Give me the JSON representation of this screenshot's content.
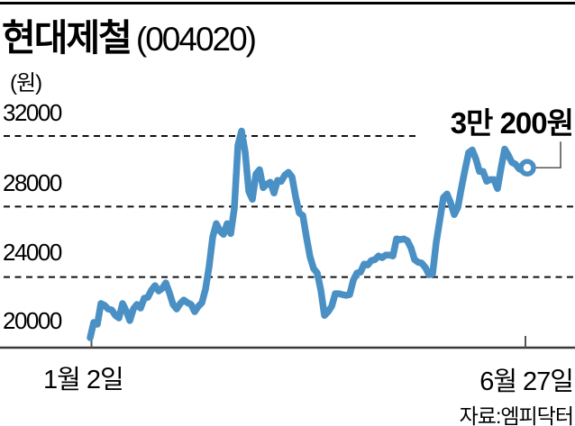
{
  "header": {
    "title": "현대제철",
    "ticker": "(004020)"
  },
  "axes": {
    "y_unit_label": "(원)",
    "y_ticks": [
      {
        "value": 32000,
        "label": "32000",
        "gridline": "dashed-short"
      },
      {
        "value": 28000,
        "label": "28000",
        "gridline": "dashed"
      },
      {
        "value": 24000,
        "label": "24000",
        "gridline": "dashed"
      },
      {
        "value": 20000,
        "label": "20000",
        "gridline": "solid-axis"
      }
    ],
    "x_ticks": [
      {
        "label": "1월 2일"
      },
      {
        "label": "6월 27일"
      }
    ]
  },
  "annotation": {
    "last_price_label": "3만 200원",
    "last_price": 30200
  },
  "source": "자료:엠피닥터",
  "colors": {
    "line": "#4a90c4",
    "grid": "#111111",
    "axis": "#3a3a3a",
    "tick": "#555555",
    "callout": "#555555",
    "marker_fill": "#ffffff"
  },
  "chart_data": {
    "type": "line",
    "title": "현대제철 (004020)",
    "ylabel": "원",
    "x_range": [
      "1월 2일",
      "6월 27일"
    ],
    "ylim": [
      19500,
      33000
    ],
    "y_gridlines": [
      20000,
      24000,
      28000,
      32000
    ],
    "grid": "dashed-horizontal",
    "legend": "none",
    "last_value": 30200,
    "values": [
      20560,
      21430,
      21320,
      22500,
      22400,
      22190,
      22140,
      21830,
      21680,
      22500,
      22090,
      21530,
      22190,
      22450,
      22240,
      22800,
      22850,
      23260,
      23520,
      23210,
      23360,
      23670,
      23110,
      22450,
      22190,
      22500,
      22700,
      22550,
      22450,
      22040,
      22340,
      22550,
      23310,
      24590,
      26270,
      27030,
      26620,
      26420,
      27030,
      26470,
      27900,
      31470,
      32280,
      31110,
      28870,
      28410,
      29840,
      30090,
      29070,
      29270,
      29380,
      28770,
      29480,
      29430,
      29780,
      29940,
      29680,
      28560,
      27640,
      27490,
      26270,
      25150,
      24480,
      24230,
      23260,
      21830,
      22040,
      22340,
      23060,
      23060,
      23010,
      22960,
      23010,
      23820,
      24230,
      24280,
      24740,
      24690,
      24940,
      24990,
      25200,
      25100,
      25250,
      25250,
      25200,
      26170,
      26120,
      26170,
      26060,
      25660,
      24990,
      24840,
      24790,
      24540,
      24130,
      24180,
      25960,
      27240,
      28510,
      28710,
      28210,
      27540,
      27950,
      29070,
      30090,
      31060,
      31210,
      30700,
      29990,
      29990,
      29430,
      29530,
      29530,
      29020,
      30190,
      31260,
      30910,
      30500,
      30400,
      30140,
      30040,
      30200
    ]
  }
}
